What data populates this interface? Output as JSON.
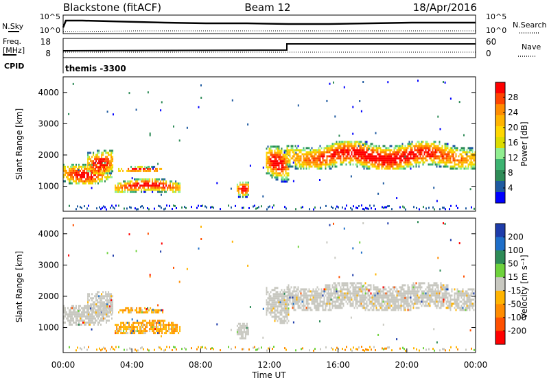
{
  "header": {
    "station": "Blackstone (fitACF)",
    "beam": "Beam 12",
    "date": "18/Apr/2016"
  },
  "top_panel": {
    "nsky_label": "N.Sky",
    "nsearch_label": "N.Search",
    "nsky_ticks": [
      "10^5",
      "10^0"
    ],
    "nsearch_ticks": [
      "10^5",
      "10^0"
    ],
    "freq_label": "Freq.",
    "freq_unit": "[MHz]",
    "freq_ticks": [
      "18",
      "8"
    ],
    "nave_label": "Nave",
    "nave_ticks": [
      "60",
      "0"
    ],
    "cpid_label": "CPID",
    "cpid_value": "themis -3300"
  },
  "chart_data": [
    {
      "type": "heatmap",
      "name": "power",
      "ylabel": "Slant Range [km]",
      "ylim": [
        200,
        4500
      ],
      "yticks": [
        1000,
        2000,
        3000,
        4000
      ],
      "xlim": [
        0,
        24
      ],
      "colorbar": {
        "label": "Power [dB]",
        "ticks": [
          "28",
          "24",
          "20",
          "16",
          "12",
          "8",
          "4"
        ],
        "colors": [
          "#ff0000",
          "#ff4500",
          "#ff8c00",
          "#ffb400",
          "#ffd700",
          "#dcdc00",
          "#90ee90",
          "#3cb371",
          "#2e8b57",
          "#1e5aa0",
          "#0000ff"
        ]
      },
      "regions": [
        {
          "t": [
            0.0,
            2.8
          ],
          "r": [
            1100,
            1850
          ],
          "kind": "echo"
        },
        {
          "t": [
            1.4,
            2.9
          ],
          "r": [
            1400,
            2300
          ],
          "kind": "echo"
        },
        {
          "t": [
            3.0,
            6.8
          ],
          "r": [
            800,
            1250
          ],
          "kind": "echo"
        },
        {
          "t": [
            3.2,
            5.8
          ],
          "r": [
            1450,
            1650
          ],
          "kind": "echo"
        },
        {
          "t": [
            10.1,
            10.8
          ],
          "r": [
            600,
            1150
          ],
          "kind": "echo"
        },
        {
          "t": [
            11.8,
            13.1
          ],
          "r": [
            1150,
            2300
          ],
          "kind": "echo"
        },
        {
          "t": [
            13.0,
            24.0
          ],
          "r": [
            1550,
            2450
          ],
          "kind": "echo"
        }
      ]
    },
    {
      "type": "heatmap",
      "name": "velocity",
      "ylabel": "Slant Range [km]",
      "xlabel": "Time UT",
      "ylim": [
        200,
        4500
      ],
      "yticks": [
        1000,
        2000,
        3000,
        4000
      ],
      "xlim": [
        0,
        24
      ],
      "xticks": [
        "00:00",
        "04:00",
        "08:00",
        "12:00",
        "16:00",
        "20:00",
        "00:00"
      ],
      "colorbar": {
        "label": "Velocity [m s⁻¹]",
        "ticks": [
          "200",
          "100",
          "50",
          "15",
          "-15",
          "-50",
          "-100",
          "-200"
        ],
        "colors": [
          "#1e3caa",
          "#1e6ec8",
          "#2e8b57",
          "#6ed23c",
          "#c8c8c0",
          "#ffb400",
          "#ff8c00",
          "#ff5000",
          "#ff0000"
        ]
      },
      "regions": [
        {
          "t": [
            0.0,
            2.8
          ],
          "r": [
            1100,
            1850
          ],
          "kind": "ground"
        },
        {
          "t": [
            1.4,
            2.9
          ],
          "r": [
            1400,
            2300
          ],
          "kind": "ground"
        },
        {
          "t": [
            3.0,
            6.8
          ],
          "r": [
            800,
            1250
          ],
          "kind": "flow"
        },
        {
          "t": [
            3.2,
            5.8
          ],
          "r": [
            1450,
            1650
          ],
          "kind": "flow"
        },
        {
          "t": [
            10.1,
            10.8
          ],
          "r": [
            600,
            1150
          ],
          "kind": "ground"
        },
        {
          "t": [
            11.8,
            13.1
          ],
          "r": [
            1150,
            2300
          ],
          "kind": "ground"
        },
        {
          "t": [
            13.0,
            24.0
          ],
          "r": [
            1550,
            2450
          ],
          "kind": "ground"
        }
      ]
    }
  ],
  "colors": {
    "axis": "#000000",
    "background": "#ffffff"
  }
}
